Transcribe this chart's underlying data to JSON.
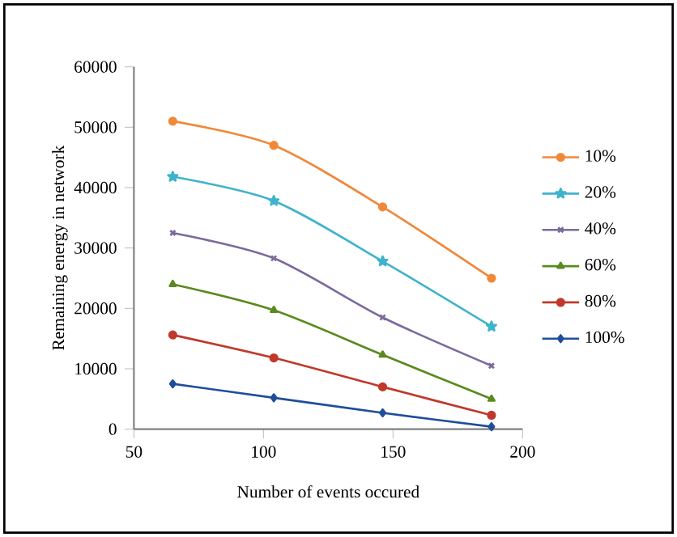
{
  "chart_data": {
    "type": "line",
    "xlabel": "Number  of  events  occured",
    "ylabel": "Remaining energy in network",
    "x": [
      65,
      104,
      146,
      188
    ],
    "series": [
      {
        "name": "10%",
        "color": "#f0883a",
        "marker": "circle",
        "values": [
          51000,
          47000,
          36800,
          25000
        ]
      },
      {
        "name": "20%",
        "color": "#3fb3cc",
        "marker": "star",
        "values": [
          41800,
          37800,
          27800,
          17000
        ]
      },
      {
        "name": "40%",
        "color": "#7b6a9c",
        "marker": "cross",
        "values": [
          32500,
          28300,
          18500,
          10500
        ]
      },
      {
        "name": "60%",
        "color": "#5a8a1e",
        "marker": "triangle",
        "values": [
          24000,
          19700,
          12300,
          5000
        ]
      },
      {
        "name": "80%",
        "color": "#c0392b",
        "marker": "circle",
        "values": [
          15600,
          11800,
          7000,
          2300
        ]
      },
      {
        "name": "100%",
        "color": "#1f4e9c",
        "marker": "diamond",
        "values": [
          7500,
          5200,
          2700,
          400
        ]
      }
    ],
    "xlim": [
      50,
      200
    ],
    "ylim": [
      0,
      60000
    ],
    "xticks": [
      50,
      100,
      150,
      200
    ],
    "yticks": [
      0,
      10000,
      20000,
      30000,
      40000,
      50000,
      60000
    ],
    "legend": "right",
    "grid": false,
    "line_style": "solid"
  }
}
